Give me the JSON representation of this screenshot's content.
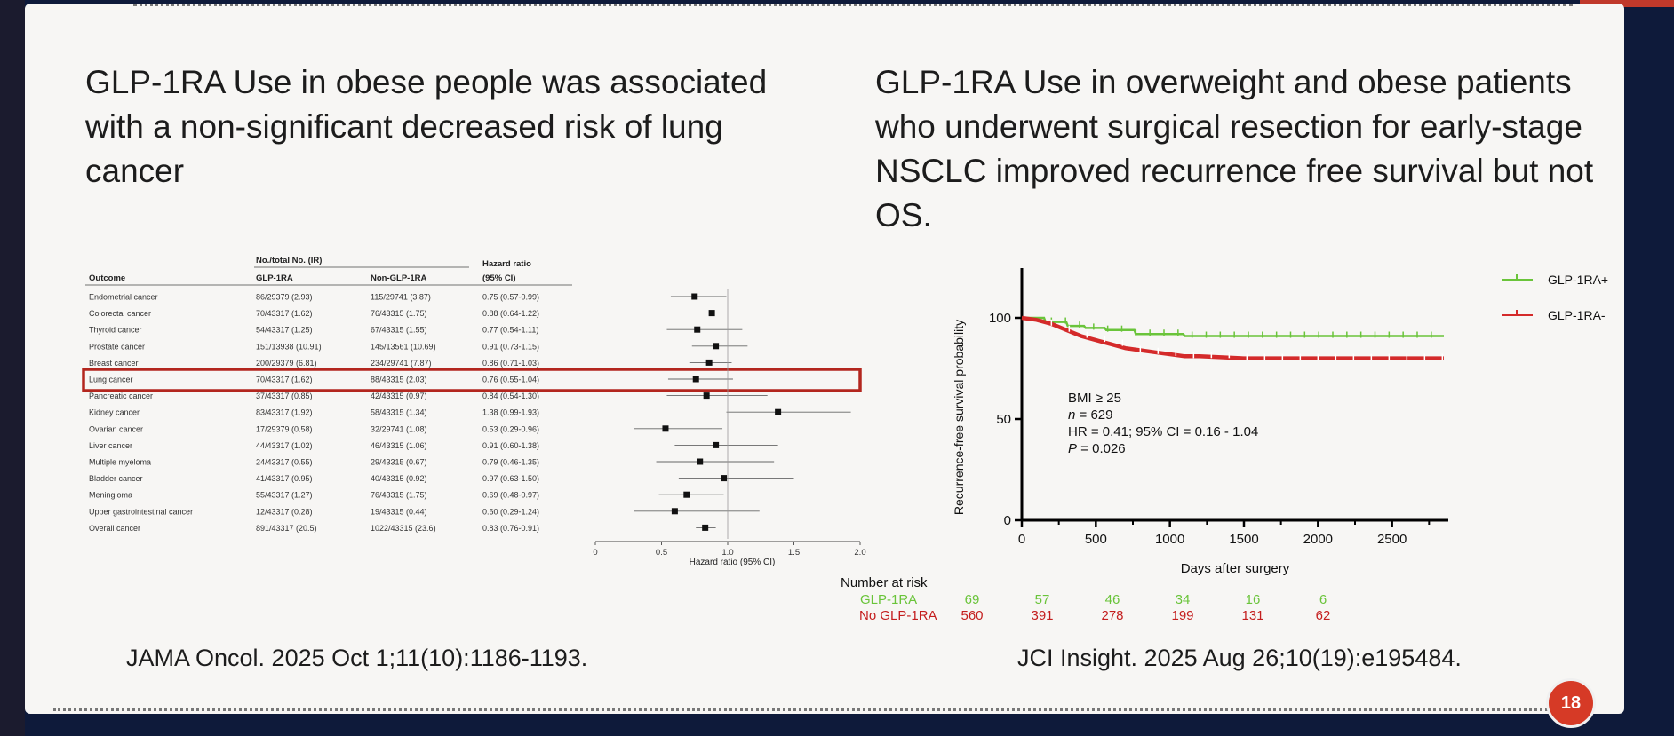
{
  "slide": {
    "left_title": "GLP-1RA Use in obese people was associated with a non-significant decreased risk of lung cancer",
    "right_title": "GLP-1RA Use in overweight and obese patients who underwent surgical resection for early-stage NSCLC improved recurrence free survival but not OS.",
    "left_citation": "JAMA Oncol. 2025 Oct 1;11(10):1186-1193.",
    "right_citation": "JCI Insight. 2025 Aug 26;10(19):e195484.",
    "page_number": "18",
    "highlight_color": "#b3261e"
  },
  "chart_data": [
    {
      "type": "forest",
      "headers": {
        "outcome": "Outcome",
        "group_header": "No./total No. (IR)",
        "col1": "GLP-1RA",
        "col2": "Non-GLP-1RA",
        "hr_header": "Hazard ratio",
        "hr_sub": "(95% CI)"
      },
      "rows": [
        {
          "outcome": "Endometrial cancer",
          "glp": "86/29379 (2.93)",
          "non": "115/29741 (3.87)",
          "hr_text": "0.75 (0.57-0.99)",
          "hr": 0.75,
          "lo": 0.57,
          "hi": 0.99
        },
        {
          "outcome": "Colorectal cancer",
          "glp": "70/43317 (1.62)",
          "non": "76/43315 (1.75)",
          "hr_text": "0.88 (0.64-1.22)",
          "hr": 0.88,
          "lo": 0.64,
          "hi": 1.22
        },
        {
          "outcome": "Thyroid cancer",
          "glp": "54/43317 (1.25)",
          "non": "67/43315 (1.55)",
          "hr_text": "0.77 (0.54-1.11)",
          "hr": 0.77,
          "lo": 0.54,
          "hi": 1.11
        },
        {
          "outcome": "Prostate cancer",
          "glp": "151/13938 (10.91)",
          "non": "145/13561 (10.69)",
          "hr_text": "0.91 (0.73-1.15)",
          "hr": 0.91,
          "lo": 0.73,
          "hi": 1.15
        },
        {
          "outcome": "Breast cancer",
          "glp": "200/29379 (6.81)",
          "non": "234/29741 (7.87)",
          "hr_text": "0.86 (0.71-1.03)",
          "hr": 0.86,
          "lo": 0.71,
          "hi": 1.03
        },
        {
          "outcome": "Lung cancer",
          "glp": "70/43317 (1.62)",
          "non": "88/43315 (2.03)",
          "hr_text": "0.76 (0.55-1.04)",
          "hr": 0.76,
          "lo": 0.55,
          "hi": 1.04,
          "highlight": true
        },
        {
          "outcome": "Pancreatic cancer",
          "glp": "37/43317 (0.85)",
          "non": "42/43315 (0.97)",
          "hr_text": "0.84 (0.54-1.30)",
          "hr": 0.84,
          "lo": 0.54,
          "hi": 1.3
        },
        {
          "outcome": "Kidney cancer",
          "glp": "83/43317 (1.92)",
          "non": "58/43315 (1.34)",
          "hr_text": "1.38 (0.99-1.93)",
          "hr": 1.38,
          "lo": 0.99,
          "hi": 1.93
        },
        {
          "outcome": "Ovarian cancer",
          "glp": "17/29379 (0.58)",
          "non": "32/29741 (1.08)",
          "hr_text": "0.53 (0.29-0.96)",
          "hr": 0.53,
          "lo": 0.29,
          "hi": 0.96
        },
        {
          "outcome": "Liver cancer",
          "glp": "44/43317 (1.02)",
          "non": "46/43315 (1.06)",
          "hr_text": "0.91 (0.60-1.38)",
          "hr": 0.91,
          "lo": 0.6,
          "hi": 1.38
        },
        {
          "outcome": "Multiple myeloma",
          "glp": "24/43317 (0.55)",
          "non": "29/43315 (0.67)",
          "hr_text": "0.79 (0.46-1.35)",
          "hr": 0.79,
          "lo": 0.46,
          "hi": 1.35
        },
        {
          "outcome": "Bladder cancer",
          "glp": "41/43317 (0.95)",
          "non": "40/43315 (0.92)",
          "hr_text": "0.97 (0.63-1.50)",
          "hr": 0.97,
          "lo": 0.63,
          "hi": 1.5
        },
        {
          "outcome": "Meningioma",
          "glp": "55/43317 (1.27)",
          "non": "76/43315 (1.75)",
          "hr_text": "0.69 (0.48-0.97)",
          "hr": 0.69,
          "lo": 0.48,
          "hi": 0.97
        },
        {
          "outcome": "Upper gastrointestinal cancer",
          "glp": "12/43317 (0.28)",
          "non": "19/43315 (0.44)",
          "hr_text": "0.60 (0.29-1.24)",
          "hr": 0.6,
          "lo": 0.29,
          "hi": 1.24
        },
        {
          "outcome": "Overall cancer",
          "glp": "891/43317 (20.5)",
          "non": "1022/43315 (23.6)",
          "hr_text": "0.83 (0.76-0.91)",
          "hr": 0.83,
          "lo": 0.76,
          "hi": 0.91
        }
      ],
      "xlim": [
        0,
        2.0
      ],
      "xticks": [
        "0",
        "0.5",
        "1.0",
        "1.5",
        "2.0"
      ],
      "xlabel": "Hazard ratio (95% CI)"
    },
    {
      "type": "line",
      "subtype": "kaplan-meier",
      "xlabel": "Days after surgery",
      "ylabel": "Recurrence-free survival probability",
      "xlim": [
        0,
        2850
      ],
      "ylim": [
        0,
        100
      ],
      "xticks": [
        "0",
        "500",
        "1000",
        "1500",
        "2000",
        "2500"
      ],
      "yticks": [
        "0",
        "50",
        "100"
      ],
      "legend_position": "top-right",
      "series": [
        {
          "name": "GLP-1RA+",
          "color": "#6ac43a",
          "x": [
            0,
            150,
            160,
            300,
            310,
            420,
            430,
            560,
            570,
            760,
            770,
            1090,
            1100,
            2850
          ],
          "y": [
            100,
            100,
            98,
            98,
            96,
            96,
            95,
            95,
            94,
            94,
            92,
            92,
            91,
            91
          ]
        },
        {
          "name": "GLP-1RA-",
          "color": "#d42a2a",
          "x": [
            0,
            100,
            200,
            300,
            400,
            500,
            600,
            700,
            800,
            900,
            1000,
            1100,
            1200,
            1500,
            2000,
            2850
          ],
          "y": [
            100,
            99,
            97,
            94,
            91,
            89,
            87,
            85,
            84,
            83,
            82,
            81,
            81,
            80,
            80,
            80
          ]
        }
      ],
      "annotation": {
        "bmi": "BMI ≥ 25",
        "n_label": "n",
        "n_value": " = 629",
        "hr": "HR = 0.41; 95% CI = 0.16 - 1.04",
        "p_label": "P",
        "p_value": " = 0.026"
      },
      "risk_table": {
        "title": "Number at risk",
        "rows": [
          {
            "label": "GLP-1RA",
            "color": "#6ac43a",
            "values": [
              "69",
              "57",
              "46",
              "34",
              "16",
              "6"
            ]
          },
          {
            "label": "No GLP-1RA",
            "color": "#c41e1e",
            "values": [
              "560",
              "391",
              "278",
              "199",
              "131",
              "62"
            ]
          }
        ]
      }
    }
  ]
}
